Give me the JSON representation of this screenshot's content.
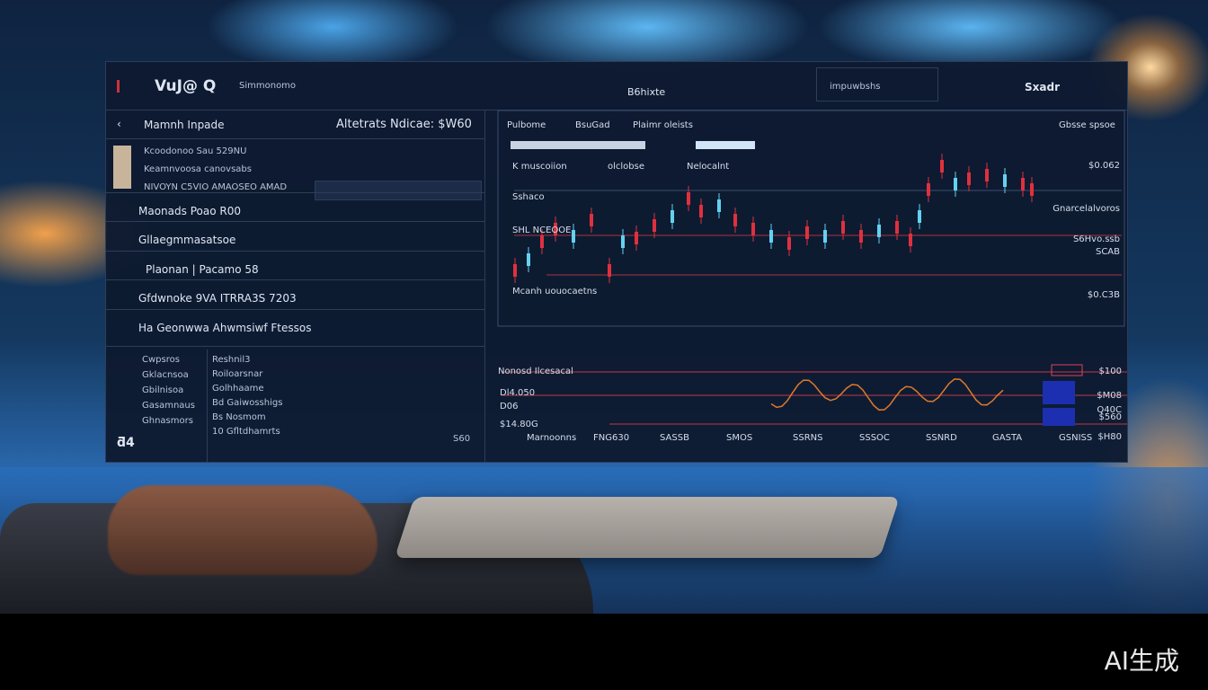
{
  "header": {
    "logo": "VuJ@ Q",
    "subtitle": "Simmonomo",
    "title": "B6hixte",
    "search": "impuwbshs",
    "user": "Sxadr"
  },
  "left_panel": {
    "title": "Mamnh Inpade",
    "heading": "Altetrats Ndicae: $W60",
    "info": [
      "Kcoodonoo Sau 529NU",
      "Keamnvoosa canovsabs",
      "NIVOYN C5VIO AMAOSEO AMAD"
    ],
    "rows": [
      "Maonads Poao R00",
      "Gllaegmmasatsoe",
      "Plaonan | Pacamo 58",
      "Gfdwnoke 9VA ITRRA3S 7203",
      "Ha Geonwwa Ahwmsiwf Ftessos"
    ],
    "table_left": [
      "Cwpsros",
      "Gklacnsoa",
      "Gbilnisoa",
      "Gasamnaus",
      "Ghnasmors"
    ],
    "table_right": [
      "Reshnil3",
      "Roiloarsnar",
      "Golhhaame",
      "Bd Gaiwosshigs",
      "Bs Nosmom",
      "10 Gfltdhamrts"
    ],
    "footer_value": "S60"
  },
  "chart_panel": {
    "tabs": [
      "Pulbome",
      "BsuGad",
      "Plaimr oleists"
    ],
    "corner": "Gbsse spsoe",
    "legend": [
      "K muscoiion",
      "olclobse",
      "Nelocalnt"
    ],
    "left_labels": [
      "Sshaco",
      "SHL NCEOOE",
      "Mcanh uouocaetns"
    ],
    "right_labels": [
      "$0.062",
      "Gnarcelalvoros",
      "S6Hvo.ssb",
      "SCAB",
      "$0.C3B"
    ],
    "lower_title": "Nonosd Ilcesacal",
    "lower_left": [
      "Dl4.050",
      "D06",
      "$14.80G"
    ],
    "lower_right": [
      "$100",
      "$M08",
      "Q40C",
      "$560",
      "$H80"
    ],
    "x_axis": [
      "Marnoonns",
      "FNG630",
      "SASSB",
      "SMOS",
      "SSRNS",
      "SSSOC",
      "SSNRD",
      "GASTA",
      "GSNISS"
    ]
  },
  "watermark": "AI生成"
}
